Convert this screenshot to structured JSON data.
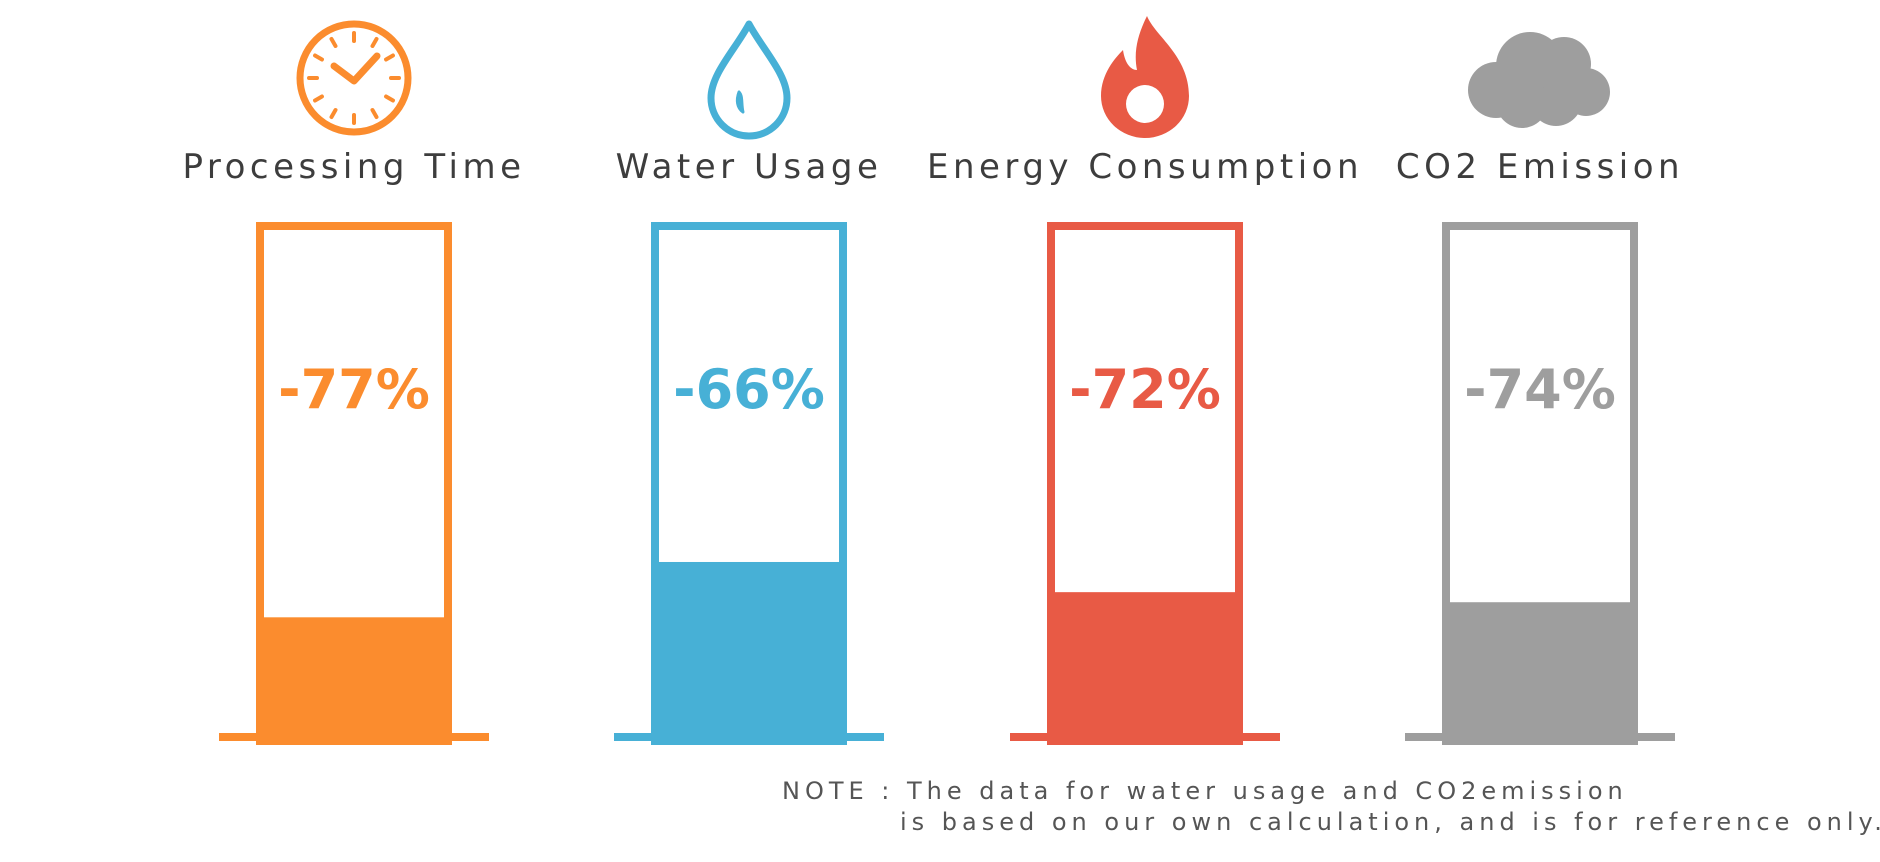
{
  "chart_data": {
    "type": "bar",
    "categories": [
      "Processing Time",
      "Water Usage",
      "Energy Consumption",
      "CO2 Emission"
    ],
    "values": [
      -77,
      -66,
      -72,
      -74
    ],
    "value_labels": [
      "-77%",
      "-66%",
      "-72%",
      "-74%"
    ],
    "remaining_fraction": [
      0.23,
      0.34,
      0.28,
      0.26
    ],
    "icons": [
      "clock-icon",
      "water-drop-icon",
      "flame-icon",
      "cloud-icon"
    ],
    "colors": [
      "#fb8c2e",
      "#47b0d6",
      "#e85a45",
      "#9e9e9e"
    ],
    "ylim": [
      0,
      100
    ],
    "title": "",
    "xlabel": "",
    "ylabel": ""
  },
  "note": {
    "line1": "NOTE : The data for water usage and CO2emission",
    "line2": "is based on our own calculation, and is for reference only."
  }
}
